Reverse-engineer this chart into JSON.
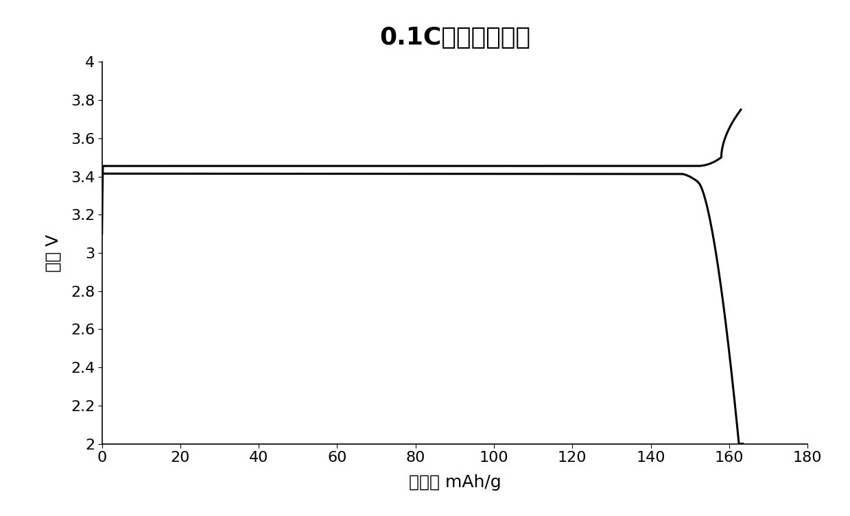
{
  "title": "0.1C充放电曲线图",
  "xlabel": "克容里 mAh/g",
  "ylabel": "电压 V",
  "xlim": [
    0,
    180
  ],
  "ylim": [
    2,
    4
  ],
  "xticks": [
    0,
    20,
    40,
    60,
    80,
    100,
    120,
    140,
    160,
    180
  ],
  "yticks": [
    2,
    2.2,
    2.4,
    2.6,
    2.8,
    3,
    3.2,
    3.4,
    3.6,
    3.8,
    4
  ],
  "line_color": "#000000",
  "line_width": 2.2,
  "background_color": "#ffffff",
  "title_fontsize": 26,
  "label_fontsize": 18,
  "tick_fontsize": 16
}
